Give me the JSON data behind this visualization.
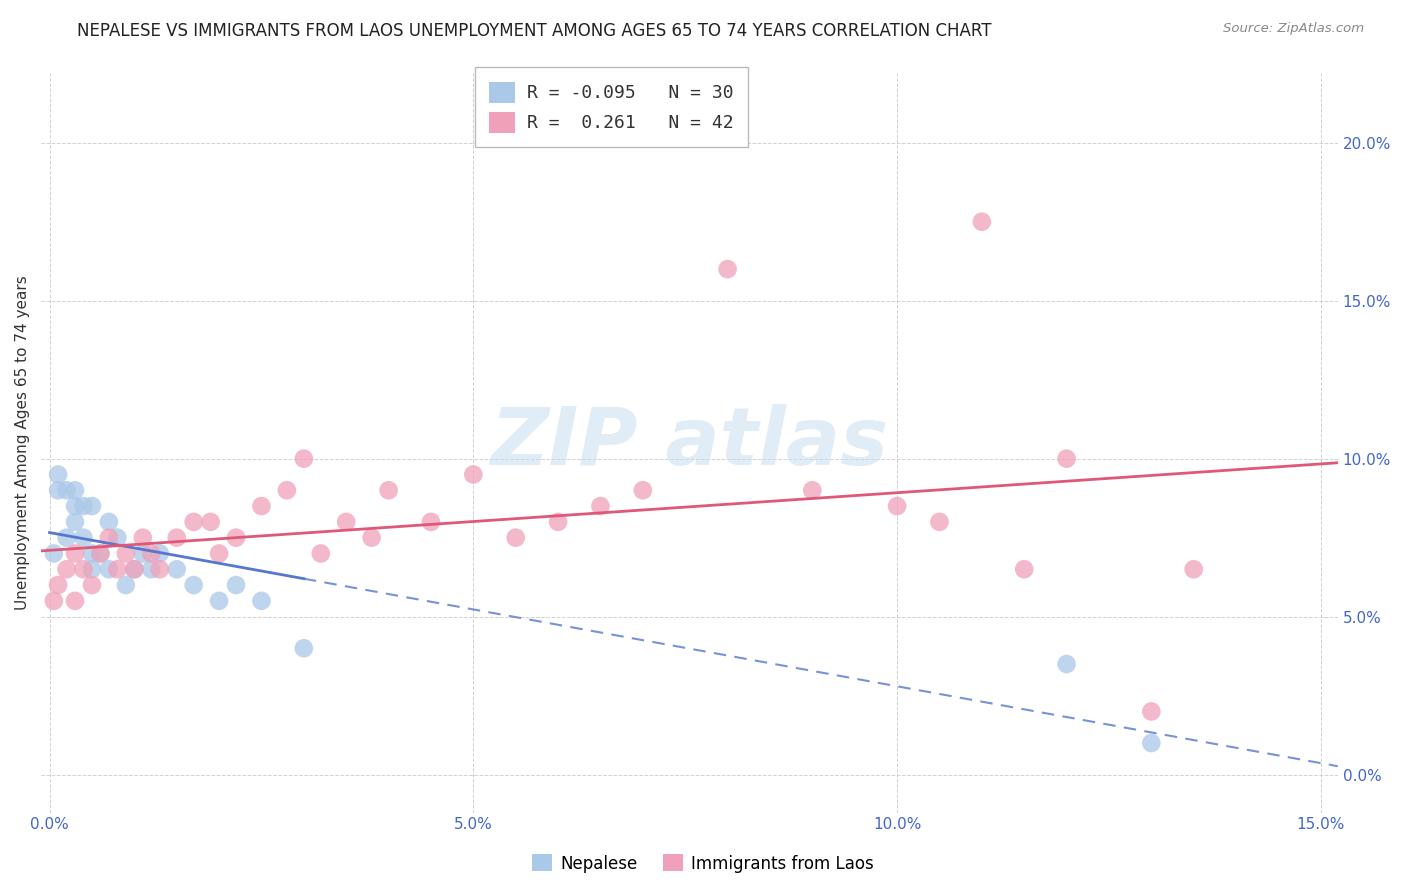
{
  "title": "NEPALESE VS IMMIGRANTS FROM LAOS UNEMPLOYMENT AMONG AGES 65 TO 74 YEARS CORRELATION CHART",
  "source": "Source: ZipAtlas.com",
  "ylabel": "Unemployment Among Ages 65 to 74 years",
  "xlim": [
    -0.001,
    0.152
  ],
  "ylim": [
    -0.012,
    0.222
  ],
  "x_ticks": [
    0.0,
    0.05,
    0.1,
    0.15
  ],
  "x_tick_labels": [
    "0.0%",
    "5.0%",
    "10.0%",
    "15.0%"
  ],
  "y_ticks": [
    0.0,
    0.05,
    0.1,
    0.15,
    0.2
  ],
  "y_tick_labels": [
    "0.0%",
    "5.0%",
    "10.0%",
    "15.0%",
    "20.0%"
  ],
  "nepalese": {
    "name": "Nepalese",
    "R": -0.095,
    "N": 30,
    "color": "#aac8e8",
    "line_color": "#5577cc",
    "x": [
      0.0005,
      0.001,
      0.001,
      0.002,
      0.002,
      0.003,
      0.003,
      0.003,
      0.004,
      0.004,
      0.005,
      0.005,
      0.005,
      0.006,
      0.007,
      0.007,
      0.008,
      0.009,
      0.01,
      0.011,
      0.012,
      0.013,
      0.015,
      0.017,
      0.02,
      0.022,
      0.025,
      0.03,
      0.12,
      0.13
    ],
    "y": [
      0.07,
      0.09,
      0.095,
      0.075,
      0.09,
      0.08,
      0.085,
      0.09,
      0.075,
      0.085,
      0.065,
      0.07,
      0.085,
      0.07,
      0.065,
      0.08,
      0.075,
      0.06,
      0.065,
      0.07,
      0.065,
      0.07,
      0.065,
      0.06,
      0.055,
      0.06,
      0.055,
      0.04,
      0.035,
      0.01
    ]
  },
  "laos": {
    "name": "Immigrants from Laos",
    "R": 0.261,
    "N": 42,
    "color": "#f0a0b8",
    "line_color": "#e05878",
    "x": [
      0.0005,
      0.001,
      0.002,
      0.003,
      0.003,
      0.004,
      0.005,
      0.006,
      0.007,
      0.008,
      0.009,
      0.01,
      0.011,
      0.012,
      0.013,
      0.015,
      0.017,
      0.019,
      0.02,
      0.022,
      0.025,
      0.028,
      0.03,
      0.032,
      0.035,
      0.038,
      0.04,
      0.045,
      0.05,
      0.055,
      0.06,
      0.065,
      0.07,
      0.08,
      0.09,
      0.1,
      0.105,
      0.11,
      0.115,
      0.12,
      0.13,
      0.135
    ],
    "y": [
      0.055,
      0.06,
      0.065,
      0.055,
      0.07,
      0.065,
      0.06,
      0.07,
      0.075,
      0.065,
      0.07,
      0.065,
      0.075,
      0.07,
      0.065,
      0.075,
      0.08,
      0.08,
      0.07,
      0.075,
      0.085,
      0.09,
      0.1,
      0.07,
      0.08,
      0.075,
      0.09,
      0.08,
      0.095,
      0.075,
      0.08,
      0.085,
      0.09,
      0.16,
      0.09,
      0.085,
      0.08,
      0.175,
      0.065,
      0.1,
      0.02,
      0.065
    ]
  },
  "background_color": "#ffffff",
  "grid_color": "#cccccc",
  "title_fontsize": 12,
  "axis_label_fontsize": 11,
  "tick_fontsize": 11
}
